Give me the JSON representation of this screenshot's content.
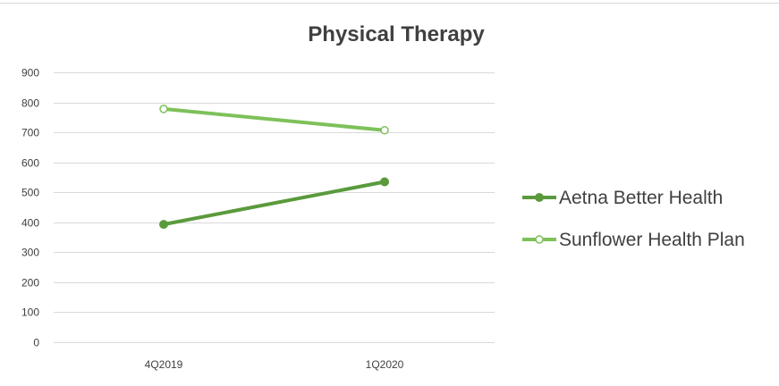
{
  "chart_data": {
    "type": "line",
    "title": "Physical Therapy",
    "xlabel": "",
    "ylabel": "",
    "categories": [
      "4Q2019",
      "1Q2020"
    ],
    "ylim": [
      0,
      900
    ],
    "yticks": [
      0,
      100,
      200,
      300,
      400,
      500,
      600,
      700,
      800,
      900
    ],
    "grid": true,
    "legend_position": "right",
    "series": [
      {
        "name": "Aetna Better Health",
        "values": [
          393,
          535
        ],
        "color": "#5a9a3c",
        "marker": "filled-circle"
      },
      {
        "name": "Sunflower Health Plan",
        "values": [
          778,
          707
        ],
        "color": "#7dc15a",
        "marker": "hollow-circle"
      }
    ]
  },
  "colors": {
    "grid": "#d9d9d9",
    "text": "#404040",
    "background": "#ffffff"
  }
}
